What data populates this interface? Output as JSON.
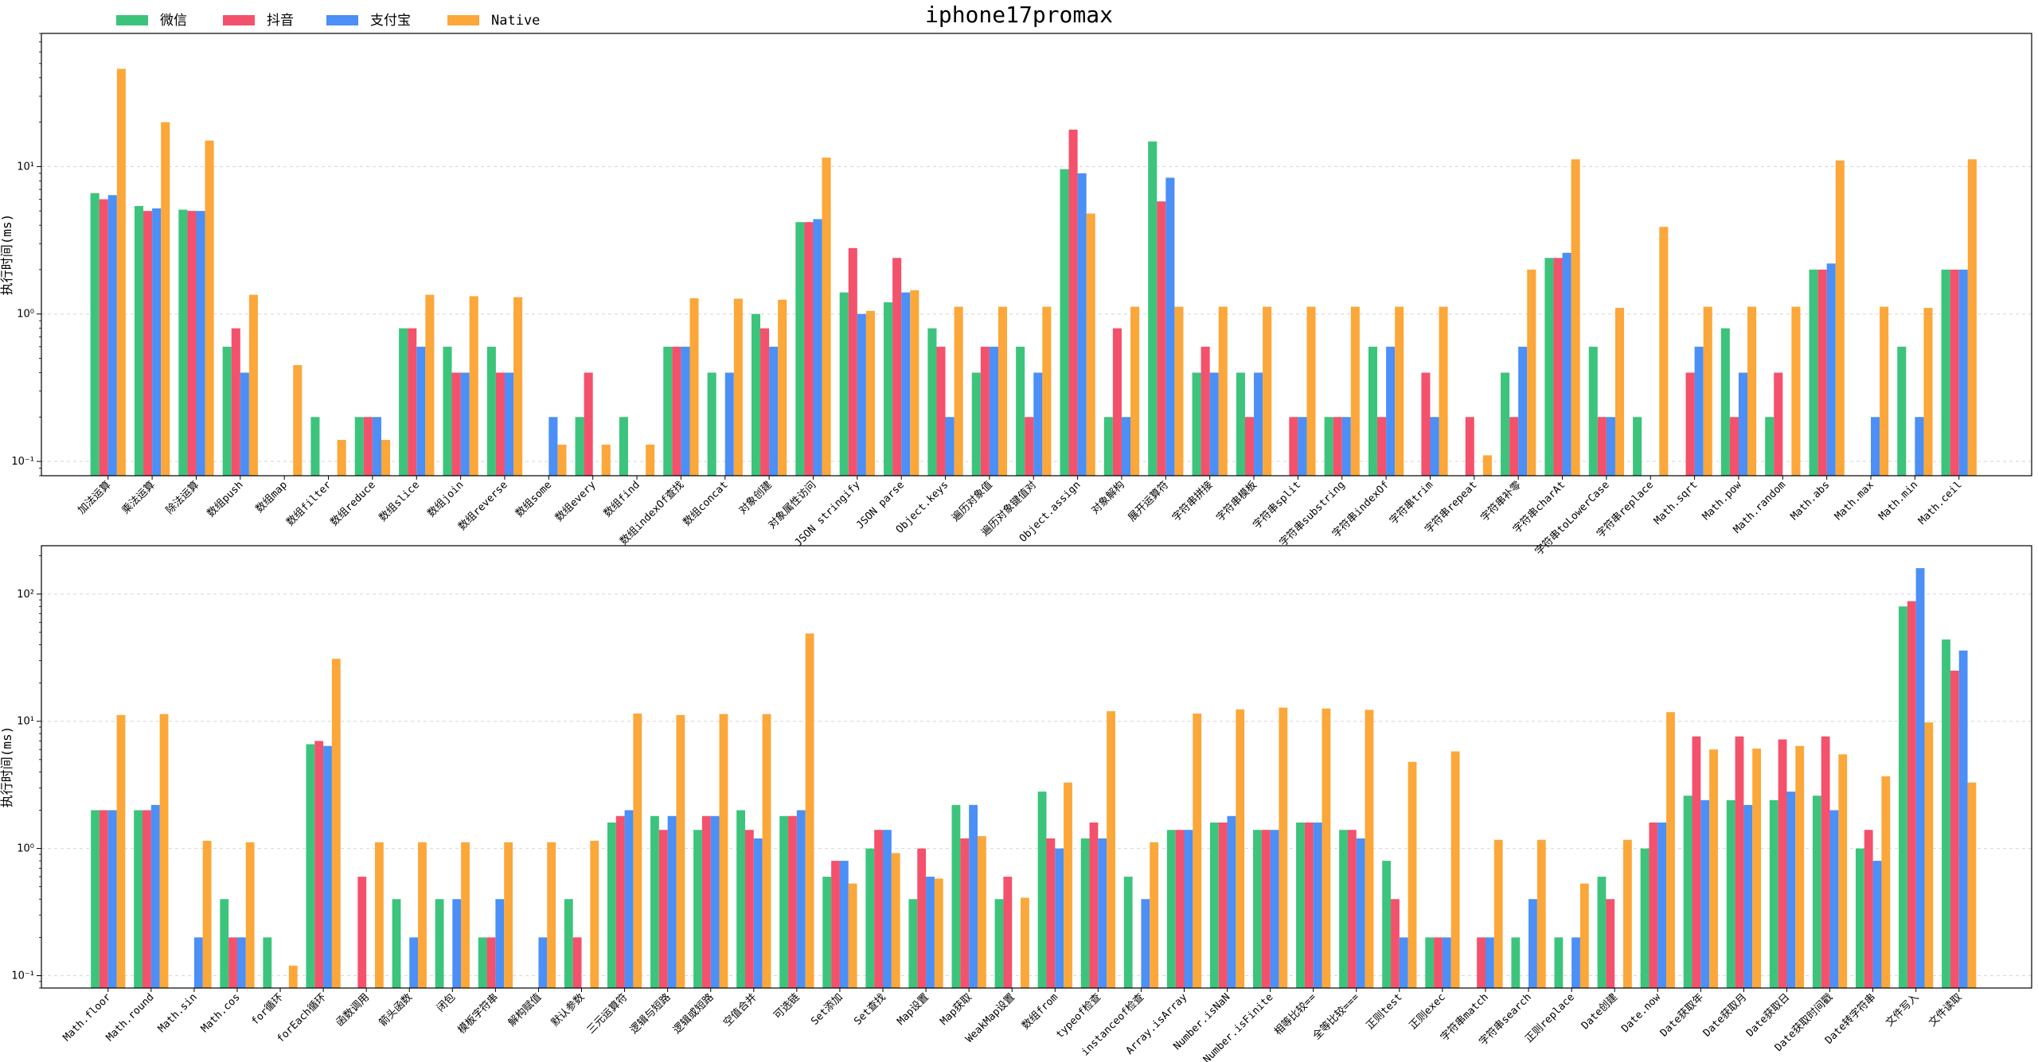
{
  "title": "iphone17promax",
  "legend": [
    {
      "label": "微信",
      "color": "#3cc47c"
    },
    {
      "label": "抖音",
      "color": "#f4516c"
    },
    {
      "label": "支付宝",
      "color": "#4b8ff7"
    },
    {
      "label": "Native",
      "color": "#fba73a"
    }
  ],
  "chart_data": [
    {
      "type": "bar",
      "log_scale": true,
      "ylabel": "执行时间(ms)",
      "ylim": [
        0.08,
        80
      ],
      "yticks": [
        {
          "v": 0.1,
          "label": "10⁻¹"
        },
        {
          "v": 1,
          "label": "10⁰"
        },
        {
          "v": 10,
          "label": "10¹"
        }
      ],
      "grid": "horizontal-dashed",
      "categories": [
        "加法运算",
        "乘法运算",
        "除法运算",
        "数组push",
        "数组map",
        "数组filter",
        "数组reduce",
        "数组slice",
        "数组join",
        "数组reverse",
        "数组some",
        "数组every",
        "数组find",
        "数组indexOf查找",
        "数组concat",
        "对象创建",
        "对象属性访问",
        "JSON stringify",
        "JSON parse",
        "Object.keys",
        "遍历对象值",
        "遍历对象键值对",
        "Object.assign",
        "对象解构",
        "展开运算符",
        "字符串拼接",
        "字符串模板",
        "字符串split",
        "字符串substring",
        "字符串indexOf",
        "字符串trim",
        "字符串repeat",
        "字符串补零",
        "字符串charAt",
        "字符串toLowerCase",
        "字符串replace",
        "Math.sqrt",
        "Math.pow",
        "Math.random",
        "Math.abs",
        "Math.max",
        "Math.min",
        "Math.ceil"
      ],
      "series": [
        {
          "name": "微信",
          "values": [
            6.6,
            5.4,
            5.1,
            0.6,
            null,
            0.2,
            0.2,
            0.8,
            0.6,
            0.6,
            null,
            0.2,
            0.2,
            0.6,
            0.4,
            1.0,
            4.2,
            1.4,
            1.2,
            0.8,
            0.4,
            0.6,
            9.6,
            0.2,
            14.8,
            0.4,
            0.4,
            null,
            0.2,
            0.6,
            null,
            null,
            0.4,
            2.4,
            0.6,
            0.2,
            null,
            0.8,
            0.2,
            2.0,
            null,
            0.6,
            2.0
          ]
        },
        {
          "name": "抖音",
          "values": [
            6.0,
            5.0,
            5.0,
            0.8,
            null,
            null,
            0.2,
            0.8,
            0.4,
            0.4,
            null,
            0.4,
            null,
            0.6,
            null,
            0.8,
            4.2,
            2.8,
            2.4,
            0.6,
            0.6,
            0.2,
            17.8,
            0.8,
            5.8,
            0.6,
            0.2,
            0.2,
            0.2,
            0.2,
            0.4,
            0.2,
            0.2,
            2.4,
            0.2,
            null,
            0.4,
            0.2,
            0.4,
            2.0,
            null,
            null,
            2.0
          ]
        },
        {
          "name": "支付宝",
          "values": [
            6.4,
            5.2,
            5.0,
            0.4,
            null,
            null,
            0.2,
            0.6,
            0.4,
            0.4,
            0.2,
            null,
            null,
            0.6,
            0.4,
            0.6,
            4.4,
            1.0,
            1.4,
            0.2,
            0.6,
            0.4,
            9.0,
            0.2,
            8.4,
            0.4,
            0.4,
            0.2,
            0.2,
            0.6,
            0.2,
            null,
            0.6,
            2.6,
            0.2,
            null,
            0.6,
            0.4,
            null,
            2.2,
            0.2,
            0.2,
            2.0
          ]
        },
        {
          "name": "Native",
          "values": [
            46,
            20,
            15,
            1.35,
            0.45,
            0.14,
            0.14,
            1.35,
            1.32,
            1.3,
            0.13,
            0.13,
            0.13,
            1.28,
            1.27,
            1.25,
            11.5,
            1.05,
            1.45,
            1.12,
            1.12,
            1.12,
            4.8,
            1.12,
            1.12,
            1.12,
            1.12,
            1.12,
            1.12,
            1.12,
            1.12,
            0.11,
            2.0,
            11.2,
            1.1,
            3.9,
            1.12,
            1.12,
            1.12,
            11.0,
            1.12,
            1.1,
            11.2
          ]
        }
      ]
    },
    {
      "type": "bar",
      "log_scale": true,
      "ylabel": "执行时间(ms)",
      "ylim": [
        0.08,
        240
      ],
      "yticks": [
        {
          "v": 0.1,
          "label": "10⁻¹"
        },
        {
          "v": 1,
          "label": "10⁰"
        },
        {
          "v": 10,
          "label": "10¹"
        },
        {
          "v": 100,
          "label": "10²"
        }
      ],
      "grid": "horizontal-dashed",
      "categories": [
        "Math.floor",
        "Math.round",
        "Math.sin",
        "Math.cos",
        "for循环",
        "forEach循环",
        "函数调用",
        "箭头函数",
        "闭包",
        "模板字符串",
        "解构赋值",
        "默认参数",
        "三元运算符",
        "逻辑与短路",
        "逻辑或短路",
        "空值合并",
        "可选链",
        "Set添加",
        "Set查找",
        "Map设置",
        "Map获取",
        "WeakMap设置",
        "数组from",
        "typeof检查",
        "instanceof检查",
        "Array.isArray",
        "Number.isNaN",
        "Number.isFinite",
        "相等比较==",
        "全等比较===",
        "正则test",
        "正则exec",
        "字符串match",
        "字符串search",
        "正则replace",
        "Date创建",
        "Date.now",
        "Date获取年",
        "Date获取月",
        "Date获取日",
        "Date获取时间戳",
        "Date转字符串",
        "文件写入",
        "文件读取"
      ],
      "series": [
        {
          "name": "微信",
          "values": [
            2.0,
            2.0,
            null,
            0.4,
            0.2,
            6.6,
            null,
            0.4,
            0.4,
            0.2,
            null,
            0.4,
            1.6,
            1.8,
            1.4,
            2.0,
            1.8,
            0.6,
            1.0,
            0.4,
            2.2,
            0.4,
            2.8,
            1.2,
            0.6,
            1.4,
            1.6,
            1.4,
            1.6,
            1.4,
            0.8,
            0.2,
            null,
            0.2,
            0.2,
            0.6,
            1.0,
            2.6,
            2.4,
            2.4,
            2.6,
            1.0,
            80,
            44
          ]
        },
        {
          "name": "抖音",
          "values": [
            2.0,
            2.0,
            null,
            0.2,
            null,
            7.0,
            0.6,
            null,
            null,
            0.2,
            null,
            0.2,
            1.8,
            1.4,
            1.8,
            1.4,
            1.8,
            0.8,
            1.4,
            1.0,
            1.2,
            0.6,
            1.2,
            1.6,
            null,
            1.4,
            1.6,
            1.4,
            1.6,
            1.4,
            0.4,
            0.2,
            0.2,
            null,
            null,
            0.4,
            1.6,
            7.6,
            7.6,
            7.2,
            7.6,
            1.4,
            88,
            25
          ]
        },
        {
          "name": "支付宝",
          "values": [
            2.0,
            2.2,
            0.2,
            0.2,
            null,
            6.4,
            null,
            0.2,
            0.4,
            0.4,
            0.2,
            null,
            2.0,
            1.8,
            1.8,
            1.2,
            2.0,
            0.8,
            1.4,
            0.6,
            2.2,
            null,
            1.0,
            1.2,
            0.4,
            1.4,
            1.8,
            1.4,
            1.6,
            1.2,
            0.2,
            0.2,
            0.2,
            0.4,
            0.2,
            null,
            1.6,
            2.4,
            2.2,
            2.8,
            2.0,
            0.8,
            160,
            36
          ]
        },
        {
          "name": "Native",
          "values": [
            11.2,
            11.4,
            1.15,
            1.12,
            0.12,
            31,
            1.12,
            1.12,
            1.12,
            1.12,
            1.12,
            1.15,
            11.5,
            11.2,
            11.4,
            11.4,
            49,
            0.53,
            0.92,
            0.58,
            1.25,
            0.41,
            3.3,
            12.0,
            1.12,
            11.5,
            12.4,
            12.8,
            12.6,
            12.3,
            4.8,
            5.8,
            1.17,
            1.17,
            0.53,
            1.17,
            11.8,
            6.0,
            6.1,
            6.4,
            5.5,
            3.7,
            9.8,
            3.3
          ]
        }
      ]
    }
  ]
}
